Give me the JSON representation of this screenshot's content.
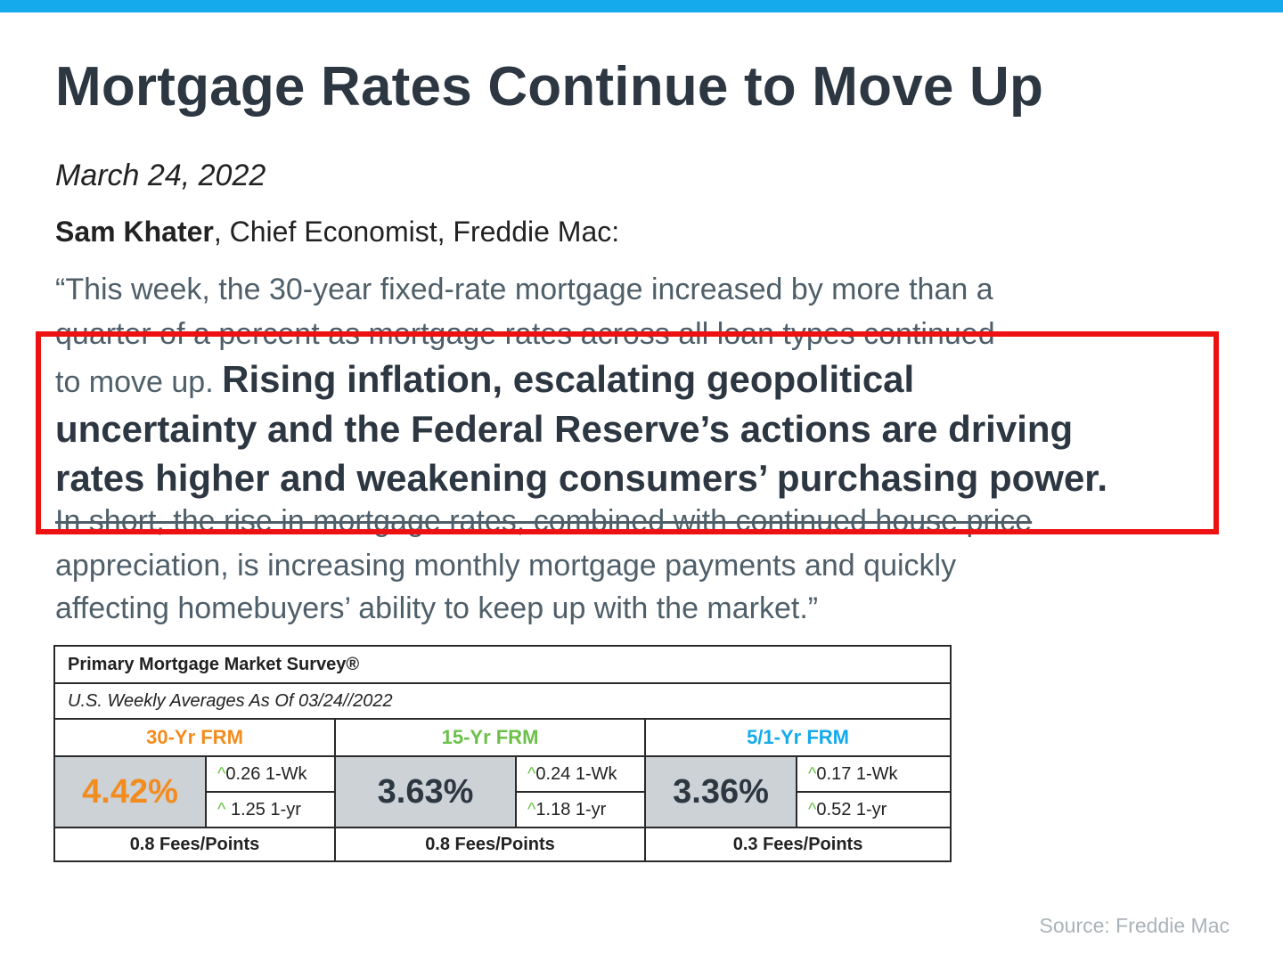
{
  "header": {
    "title": "Mortgage Rates Continue to Move Up",
    "date": "March 24, 2022"
  },
  "byline": {
    "name": "Sam Khater",
    "role": ", Chief Economist, Freddie Mac:"
  },
  "quote": {
    "line1": "“This week, the 30-year fixed-rate mortgage increased by more than a",
    "line2": "quarter of a percent as mortgage rates across all loan types continued",
    "line3_plain": "to move up. ",
    "line3_bold": "Rising inflation, escalating geopolitical",
    "line4": "uncertainty and the Federal Reserve’s actions are driving",
    "line5": "rates higher and weakening consumers’ purchasing power.",
    "line6": "In short, the rise in mortgage rates, combined with continued house price",
    "line7": "appreciation, is increasing monthly mortgage payments and quickly",
    "line8": "affecting homebuyers’ ability to keep up with the market.”"
  },
  "survey": {
    "title": "Primary Mortgage Market Survey®",
    "subtitle": "U.S. Weekly Averages As Of 03/24//2022",
    "products": [
      {
        "label": "30-Yr FRM",
        "color": "#f28c1e",
        "rate": "4.42%",
        "rate_color": "#f28c1e",
        "week_caret": "^",
        "week_change": "0.26 1-Wk",
        "year_caret": "^",
        "year_change": " 1.25 1-yr",
        "fees": "0.8 Fees/Points"
      },
      {
        "label": "15-Yr FRM",
        "color": "#6cc04a",
        "rate": "3.63%",
        "rate_color": "#2d3742",
        "week_caret": "^",
        "week_change": "0.24 1-Wk",
        "year_caret": "^",
        "year_change": "1.18 1-yr",
        "fees": "0.8 Fees/Points"
      },
      {
        "label": "5/1-Yr FRM",
        "color": "#14aaeb",
        "rate": "3.36%",
        "rate_color": "#2d3742",
        "week_caret": "^",
        "week_change": "0.17 1-Wk",
        "year_caret": "^",
        "year_change": "0.52 1-yr",
        "fees": "0.3 Fees/Points"
      }
    ]
  },
  "footer": {
    "source": "Source: Freddie Mac"
  },
  "colors": {
    "accent_bar": "#14aaeb",
    "highlight_border": "#ee1111",
    "title_text": "#2d3742",
    "body_text": "#4f5f69"
  }
}
